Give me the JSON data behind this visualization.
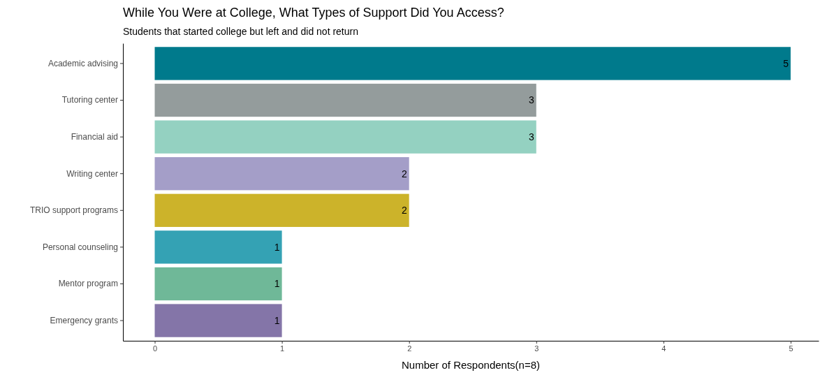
{
  "chart_data": {
    "type": "bar",
    "orientation": "horizontal",
    "title": "While You Were at College, What Types of Support Did You Access?",
    "subtitle": "Students that started college but left and did not return",
    "xlabel": "Number of Respondents(n=8)",
    "categories": [
      "Academic advising",
      "Tutoring center",
      "Financial aid",
      "Writing center",
      "TRIO support programs",
      "Personal counseling",
      "Mentor program",
      "Emergency grants"
    ],
    "values": [
      5,
      3,
      3,
      2,
      2,
      1,
      1,
      1
    ],
    "colors": [
      "#007a8c",
      "#949c9c",
      "#94d1c1",
      "#a49ec8",
      "#ccb32a",
      "#34a2b4",
      "#6fb898",
      "#8475a8"
    ],
    "xlim": [
      -0.25,
      5.22
    ],
    "xticks": [
      0,
      1,
      2,
      3,
      4,
      5
    ],
    "grid": false,
    "data_labels": true
  }
}
